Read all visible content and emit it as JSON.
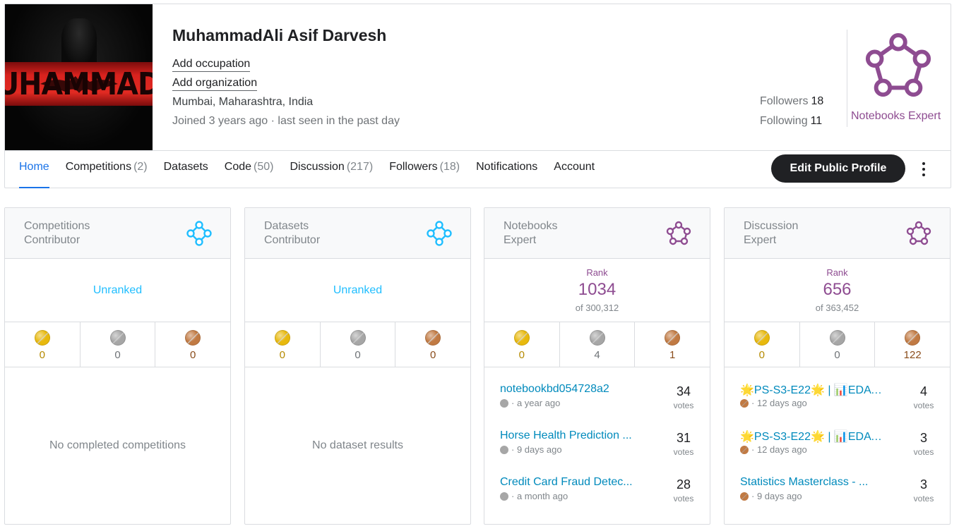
{
  "profile": {
    "avatar_text": "UHAMMAD A",
    "name": "MuhammadAli Asif Darvesh",
    "add_occupation": "Add occupation",
    "add_organization": "Add organization",
    "location": "Mumbai, Maharashtra, India",
    "joined": "Joined 3 years ago · last seen in the past day",
    "followers_label": "Followers",
    "followers_count": "18",
    "following_label": "Following",
    "following_count": "11",
    "tier_label": "Notebooks Expert",
    "tier_color": "#8e4c91"
  },
  "tabs": [
    {
      "label": "Home",
      "count": ""
    },
    {
      "label": "Competitions",
      "count": "(2)"
    },
    {
      "label": "Datasets",
      "count": ""
    },
    {
      "label": "Code",
      "count": "(50)"
    },
    {
      "label": "Discussion",
      "count": "(217)"
    },
    {
      "label": "Followers",
      "count": "(18)"
    },
    {
      "label": "Notifications",
      "count": ""
    },
    {
      "label": "Account",
      "count": ""
    }
  ],
  "actions": {
    "edit_profile": "Edit Public Profile"
  },
  "colors": {
    "contributor": "#20beff",
    "expert": "#8e4c91",
    "link": "#008abc",
    "gold": "#e8b90d",
    "silver": "#a6a6a6",
    "bronze": "#c17a43"
  },
  "cards": [
    {
      "title": "Competitions\nContributor",
      "tier_icon": "contributor-icon",
      "rank_text": "Unranked",
      "medals": {
        "gold": "0",
        "silver": "0",
        "bronze": "0"
      },
      "empty_message": "No completed competitions"
    },
    {
      "title": "Datasets\nContributor",
      "tier_icon": "contributor-icon",
      "rank_text": "Unranked",
      "medals": {
        "gold": "0",
        "silver": "0",
        "bronze": "0"
      },
      "empty_message": "No dataset results"
    },
    {
      "title": "Notebooks\nExpert",
      "tier_icon": "expert-icon",
      "rank_label": "Rank",
      "rank": "1034",
      "rank_of": "of 300,312",
      "medals": {
        "gold": "0",
        "silver": "4",
        "bronze": "1"
      },
      "items": [
        {
          "title": "notebookbd054728a2",
          "medal": "silver",
          "time": "· a year ago",
          "votes": "34",
          "votes_label": "votes"
        },
        {
          "title": "Horse Health Prediction ...",
          "medal": "silver",
          "time": "· 9 days ago",
          "votes": "31",
          "votes_label": "votes"
        },
        {
          "title": "Credit Card Fraud Detec...",
          "medal": "silver",
          "time": "· a month ago",
          "votes": "28",
          "votes_label": "votes"
        }
      ]
    },
    {
      "title": "Discussion\nExpert",
      "tier_icon": "expert-icon",
      "rank_label": "Rank",
      "rank": "656",
      "rank_of": "of 363,452",
      "medals": {
        "gold": "0",
        "silver": "0",
        "bronze": "122"
      },
      "items": [
        {
          "title": "🌟PS-S3-E22🌟 | 📊EDA |...",
          "medal": "bronze",
          "time": "· 12 days ago",
          "votes": "4",
          "votes_label": "votes"
        },
        {
          "title": "🌟PS-S3-E22🌟 | 📊EDA |...",
          "medal": "bronze",
          "time": "· 12 days ago",
          "votes": "3",
          "votes_label": "votes"
        },
        {
          "title": "Statistics Masterclass - ...",
          "medal": "bronze",
          "time": "· 9 days ago",
          "votes": "3",
          "votes_label": "votes"
        }
      ]
    }
  ]
}
